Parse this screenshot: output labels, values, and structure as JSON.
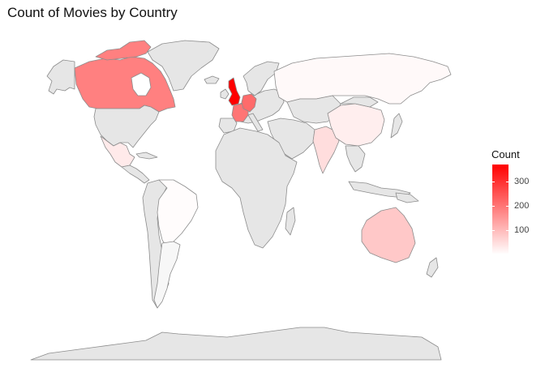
{
  "title": "Count of Movies by Country",
  "legend": {
    "title": "Count",
    "min": 0,
    "max": 370,
    "ticks": [
      100,
      200,
      300
    ],
    "tick_labels": [
      "100",
      "200",
      "300"
    ],
    "color_low": "#ffffff",
    "color_high": "#ff0000"
  },
  "no_data_color": "#e6e6e6",
  "border_color": "#8c8c8c",
  "countries": [
    {
      "name": "United Kingdom",
      "count": 370
    },
    {
      "name": "Germany",
      "count": 215
    },
    {
      "name": "France",
      "count": 200
    },
    {
      "name": "Canada",
      "count": 185
    },
    {
      "name": "Australia",
      "count": 80
    },
    {
      "name": "India",
      "count": 50
    },
    {
      "name": "Mexico",
      "count": 30
    },
    {
      "name": "China",
      "count": 25
    },
    {
      "name": "Russia",
      "count": 8
    },
    {
      "name": "Brazil",
      "count": 5
    }
  ]
}
